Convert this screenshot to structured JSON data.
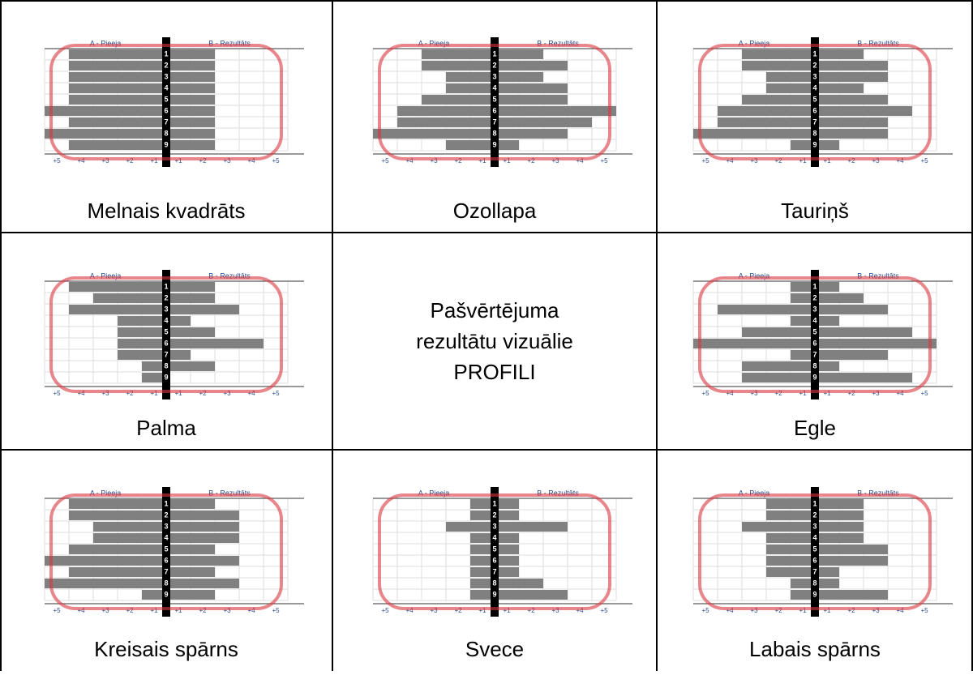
{
  "center_text": [
    "Pašvērtējuma",
    "rezultātu vizuālie",
    "PROFILI"
  ],
  "chart_header": {
    "a": "A - Pieeja",
    "b": "B - Rezultāts"
  },
  "row_labels": [
    "1",
    "2",
    "3",
    "4",
    "5",
    "6",
    "7",
    "8",
    "9"
  ],
  "axis_labels": [
    "+5",
    "+4",
    "+3",
    "+2",
    "+1",
    "+1",
    "+2",
    "+3",
    "+4",
    "+5"
  ],
  "profiles": [
    {
      "name": "Melnais kvadrāts",
      "left": [
        4,
        4,
        4,
        4,
        4,
        5,
        4,
        5,
        4
      ],
      "right": [
        2,
        2,
        2,
        2,
        2,
        2,
        2,
        2,
        2
      ]
    },
    {
      "name": "Ozollapa",
      "left": [
        3,
        3,
        2,
        2,
        3,
        4,
        4,
        5,
        2
      ],
      "right": [
        2,
        3,
        2,
        3,
        3,
        5,
        4,
        3,
        1
      ]
    },
    {
      "name": "Tauriņš",
      "left": [
        3,
        3,
        2,
        2,
        3,
        4,
        4,
        5,
        1
      ],
      "right": [
        2,
        3,
        3,
        2,
        3,
        4,
        3,
        3,
        1
      ]
    },
    {
      "name": "Palma",
      "left": [
        4,
        3,
        4,
        2,
        2,
        2,
        2,
        1,
        1
      ],
      "right": [
        2,
        2,
        3,
        1,
        2,
        4,
        1,
        2,
        0
      ]
    },
    {
      "name": "Egle",
      "left": [
        1,
        1,
        4,
        1,
        3,
        5,
        1,
        3,
        3
      ],
      "right": [
        1,
        2,
        3,
        1,
        4,
        5,
        3,
        1,
        4
      ]
    },
    {
      "name": "Kreisais spārns",
      "left": [
        4,
        4,
        3,
        3,
        4,
        5,
        4,
        5,
        1
      ],
      "right": [
        2,
        3,
        3,
        3,
        2,
        3,
        2,
        3,
        2
      ]
    },
    {
      "name": "Svece",
      "left": [
        1,
        1,
        2,
        1,
        1,
        1,
        1,
        1,
        1
      ],
      "right": [
        1,
        1,
        3,
        1,
        1,
        1,
        1,
        2,
        3
      ]
    },
    {
      "name": "Labais spārns",
      "left": [
        2,
        2,
        3,
        2,
        2,
        2,
        2,
        1,
        1
      ],
      "right": [
        2,
        2,
        2,
        2,
        3,
        3,
        1,
        1,
        3
      ]
    }
  ]
}
